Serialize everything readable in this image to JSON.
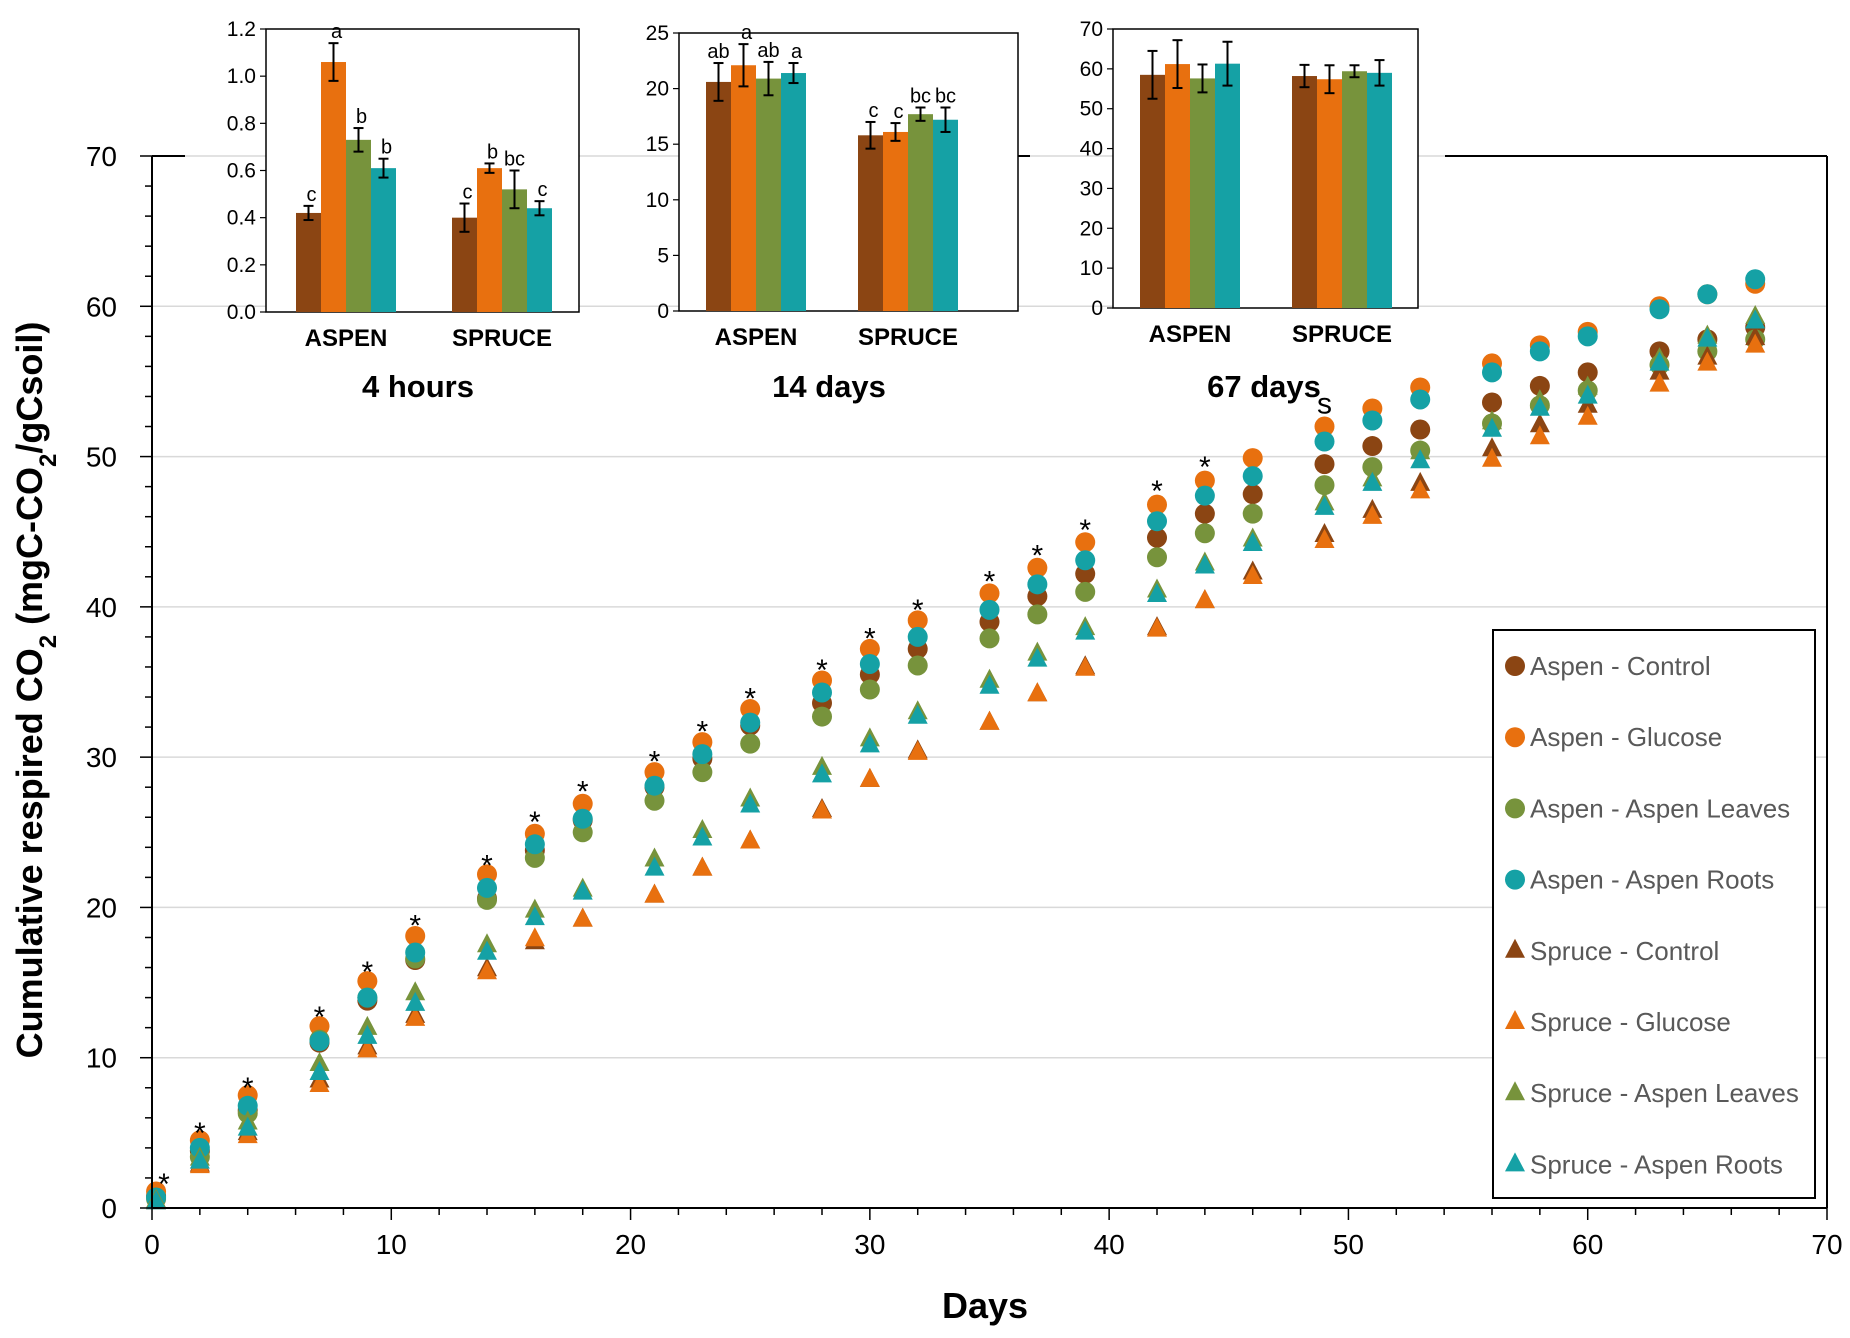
{
  "chart_data": {
    "main": {
      "type": "scatter",
      "xlabel": "Days",
      "ylabel_parts": [
        "Cumulative respired CO",
        "2",
        " (mgC-CO",
        "2",
        "/gCsoil)"
      ],
      "xlim": [
        0,
        70
      ],
      "ylim": [
        0,
        70
      ],
      "xticks": [
        0,
        10,
        20,
        30,
        40,
        50,
        60,
        70
      ],
      "yticks": [
        0,
        10,
        20,
        30,
        40,
        50,
        60,
        70
      ],
      "grid": true,
      "legend_position": "bottom-right",
      "x": [
        0.17,
        2,
        4,
        7,
        9,
        11,
        14,
        16,
        18,
        21,
        23,
        25,
        28,
        30,
        32,
        35,
        37,
        39,
        42,
        44,
        46,
        49,
        51,
        53,
        56,
        58,
        60,
        63,
        65,
        67
      ],
      "series": [
        {
          "name": "Aspen - Control",
          "marker": "circle",
          "color": "#8B4513",
          "values": [
            0.8,
            3.8,
            6.5,
            11.0,
            13.8,
            16.5,
            20.6,
            23.8,
            25.8,
            28.0,
            29.9,
            32.1,
            33.6,
            35.5,
            37.2,
            39.0,
            40.7,
            42.2,
            44.6,
            46.2,
            47.5,
            49.5,
            50.7,
            51.8,
            53.6,
            54.7,
            55.6,
            57.0,
            57.8,
            58.6
          ]
        },
        {
          "name": "Aspen - Glucose",
          "marker": "circle",
          "color": "#E8700F",
          "values": [
            1.1,
            4.5,
            7.5,
            12.1,
            15.1,
            18.1,
            22.2,
            24.9,
            26.9,
            29.0,
            31.0,
            33.2,
            35.1,
            37.2,
            39.1,
            40.9,
            42.6,
            44.3,
            46.8,
            48.4,
            49.9,
            52.0,
            53.2,
            54.6,
            56.2,
            57.4,
            58.3,
            60.0,
            60.8,
            61.5
          ]
        },
        {
          "name": "Aspen - Aspen Leaves",
          "marker": "circle",
          "color": "#77933C",
          "values": [
            0.6,
            3.4,
            6.3,
            11.2,
            14.0,
            16.6,
            20.5,
            23.3,
            25.0,
            27.1,
            29.0,
            30.9,
            32.7,
            34.5,
            36.1,
            37.9,
            39.5,
            41.0,
            43.3,
            44.9,
            46.2,
            48.1,
            49.3,
            50.4,
            52.2,
            53.4,
            54.4,
            56.1,
            57.0,
            57.8
          ]
        },
        {
          "name": "Aspen - Aspen Roots",
          "marker": "circle",
          "color": "#15A1A5",
          "values": [
            0.7,
            4.0,
            6.8,
            11.1,
            14.0,
            17.0,
            21.3,
            24.2,
            25.9,
            28.1,
            30.2,
            32.3,
            34.3,
            36.2,
            38.0,
            39.8,
            41.5,
            43.1,
            45.7,
            47.4,
            48.7,
            51.0,
            52.4,
            53.8,
            55.6,
            57.0,
            58.0,
            59.8,
            60.8,
            61.8
          ]
        },
        {
          "name": "Spruce - Control",
          "marker": "triangle",
          "color": "#8B4513",
          "values": [
            0.4,
            2.9,
            5.0,
            8.5,
            10.7,
            12.8,
            15.9,
            17.7,
            19.2,
            20.8,
            22.6,
            24.4,
            26.5,
            28.5,
            30.4,
            32.3,
            34.2,
            36.0,
            38.6,
            40.4,
            42.3,
            44.8,
            46.4,
            48.2,
            50.5,
            52.1,
            53.4,
            55.6,
            56.6,
            57.9
          ]
        },
        {
          "name": "Spruce - Glucose",
          "marker": "triangle",
          "color": "#E8700F",
          "values": [
            0.5,
            2.8,
            4.8,
            8.2,
            10.5,
            12.6,
            15.7,
            17.9,
            19.2,
            20.8,
            22.6,
            24.4,
            26.4,
            28.5,
            30.3,
            32.3,
            34.2,
            35.9,
            38.5,
            40.4,
            42.0,
            44.4,
            46.0,
            47.7,
            49.8,
            51.3,
            52.6,
            54.8,
            56.2,
            57.4
          ]
        },
        {
          "name": "Spruce - Aspen Leaves",
          "marker": "triangle",
          "color": "#77933C",
          "values": [
            0.5,
            3.3,
            5.7,
            9.6,
            12.0,
            14.3,
            17.5,
            19.8,
            21.2,
            23.2,
            25.1,
            27.2,
            29.3,
            31.2,
            33.0,
            35.1,
            36.9,
            38.6,
            41.1,
            42.9,
            44.5,
            46.9,
            48.5,
            50.3,
            52.3,
            53.7,
            54.6,
            56.5,
            58.0,
            59.3
          ]
        },
        {
          "name": "Spruce - Aspen Roots",
          "marker": "triangle",
          "color": "#15A1A5",
          "values": [
            0.4,
            3.1,
            5.3,
            9.0,
            11.4,
            13.6,
            17.0,
            19.3,
            21.0,
            22.6,
            24.6,
            26.8,
            28.8,
            30.8,
            32.7,
            34.7,
            36.5,
            38.3,
            40.8,
            42.7,
            44.2,
            46.6,
            48.2,
            49.7,
            51.8,
            53.2,
            54.0,
            56.2,
            57.8,
            59.0
          ]
        }
      ],
      "annotations": {
        "star_text": "*",
        "star_x": [
          0.5,
          2,
          4,
          7,
          9,
          11,
          14,
          16,
          18,
          21,
          23,
          25,
          28,
          30,
          32,
          35,
          37,
          39,
          42,
          44
        ],
        "star_y": [
          2.0,
          5.4,
          8.4,
          13.1,
          16.1,
          19.2,
          23.2,
          26.1,
          28.1,
          30.1,
          32.1,
          34.3,
          36.2,
          38.3,
          40.2,
          42.1,
          43.8,
          45.5,
          48.1,
          49.7
        ],
        "s_text": "s",
        "s_x": 49,
        "s_y": 53.4
      }
    },
    "insets": [
      {
        "type": "bar",
        "title": "4 hours",
        "categories": [
          "ASPEN",
          "SPRUCE"
        ],
        "ylim": [
          0,
          1.2
        ],
        "yticks": [
          "0.0",
          "0.2",
          "0.4",
          "0.6",
          "0.8",
          "1.0",
          "1.2"
        ],
        "series_names": [
          "Control",
          "Glucose",
          "Aspen Leaves",
          "Aspen Roots"
        ],
        "values": [
          [
            0.42,
            1.06,
            0.73,
            0.61
          ],
          [
            0.4,
            0.61,
            0.52,
            0.44
          ]
        ],
        "errors": [
          [
            0.03,
            0.08,
            0.05,
            0.04
          ],
          [
            0.06,
            0.02,
            0.08,
            0.03
          ]
        ],
        "letters": [
          [
            "c",
            "a",
            "b",
            "b"
          ],
          [
            "c",
            "b",
            "bc",
            "c"
          ]
        ]
      },
      {
        "type": "bar",
        "title": "14 days",
        "categories": [
          "ASPEN",
          "SPRUCE"
        ],
        "ylim": [
          0,
          25
        ],
        "yticks": [
          "0",
          "5",
          "10",
          "15",
          "20",
          "25"
        ],
        "series_names": [
          "Control",
          "Glucose",
          "Aspen Leaves",
          "Aspen Roots"
        ],
        "values": [
          [
            20.6,
            22.1,
            20.9,
            21.4
          ],
          [
            15.8,
            16.1,
            17.7,
            17.2
          ]
        ],
        "errors": [
          [
            1.7,
            1.9,
            1.5,
            0.9
          ],
          [
            1.2,
            0.8,
            0.6,
            1.1
          ]
        ],
        "letters": [
          [
            "ab",
            "a",
            "ab",
            "a"
          ],
          [
            "c",
            "c",
            "bc",
            "bc"
          ]
        ]
      },
      {
        "type": "bar",
        "title": "67 days",
        "categories": [
          "ASPEN",
          "SPRUCE"
        ],
        "ylim": [
          0,
          70
        ],
        "yticks": [
          "0",
          "10",
          "20",
          "30",
          "40",
          "50",
          "60",
          "70"
        ],
        "series_names": [
          "Control",
          "Glucose",
          "Aspen Leaves",
          "Aspen Roots"
        ],
        "values": [
          [
            58.5,
            61.2,
            57.6,
            61.3
          ],
          [
            58.2,
            57.4,
            59.4,
            59.0
          ]
        ],
        "errors": [
          [
            6.0,
            6.0,
            3.5,
            5.5
          ],
          [
            2.8,
            3.5,
            1.5,
            3.2
          ]
        ],
        "letters": [
          [
            "",
            "",
            "",
            ""
          ],
          [
            "",
            "",
            "",
            ""
          ]
        ]
      }
    ]
  }
}
